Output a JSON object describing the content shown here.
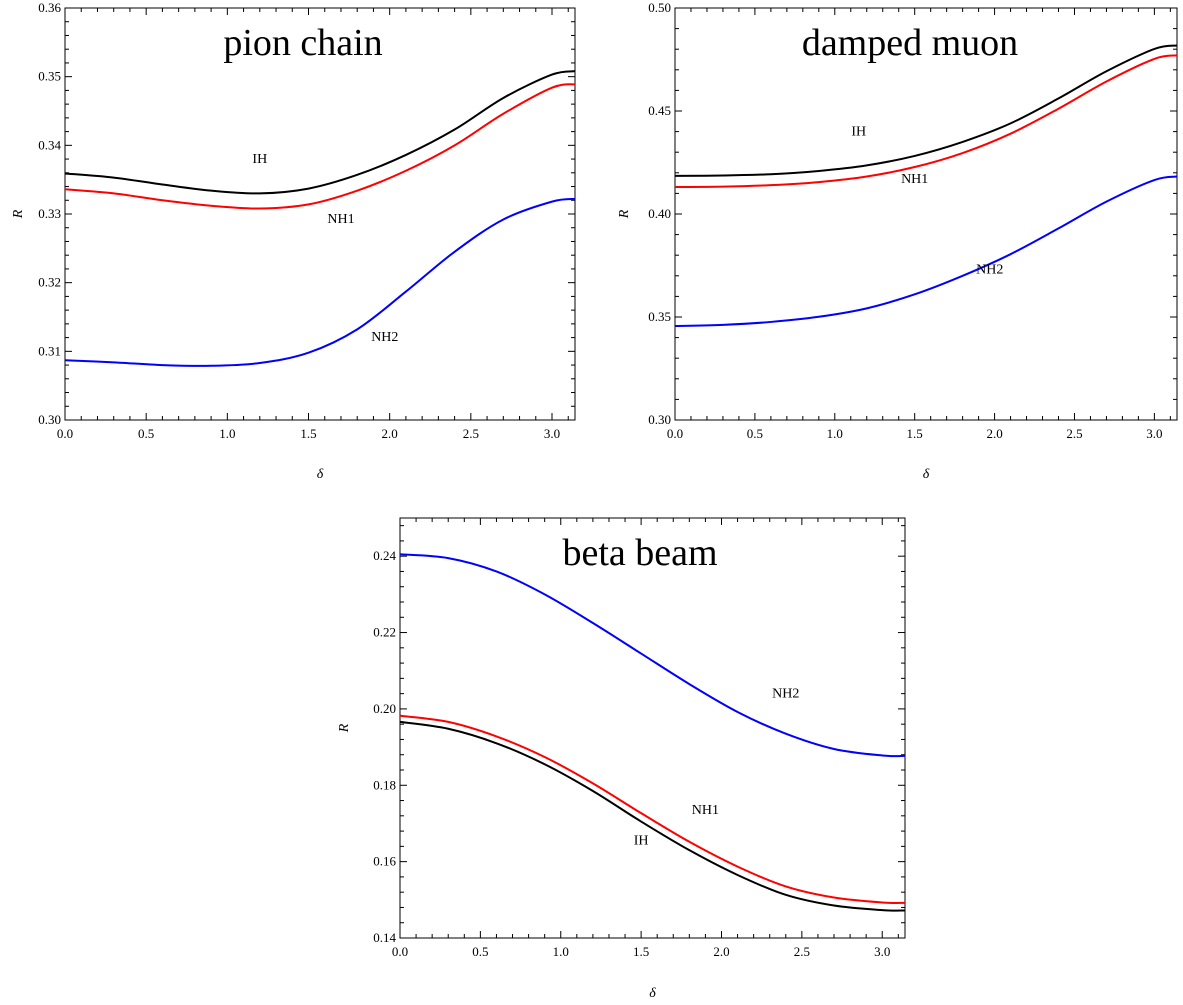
{
  "chart_data": [
    {
      "type": "line",
      "title": "pion chain",
      "xlabel": "δ",
      "ylabel": "R",
      "xlim": [
        0,
        3.1416
      ],
      "ylim": [
        0.3,
        0.36
      ],
      "xticks": [
        "0.0",
        "0.5",
        "1.0",
        "1.5",
        "2.0",
        "2.5",
        "3.0"
      ],
      "yticks": [
        "0.30",
        "0.31",
        "0.32",
        "0.33",
        "0.34",
        "0.35",
        "0.36"
      ],
      "ytick_values": [
        0.3,
        0.31,
        0.32,
        0.33,
        0.34,
        0.35,
        0.36
      ],
      "xtick_values": [
        0,
        0.5,
        1,
        1.5,
        2,
        2.5,
        3
      ],
      "grid": false,
      "series": [
        {
          "name": "IH",
          "color": "#000000",
          "x": [
            0,
            0.3,
            0.6,
            0.9,
            1.2,
            1.5,
            1.8,
            2.1,
            2.4,
            2.7,
            3.0,
            3.1416
          ],
          "y": [
            0.3359,
            0.3353,
            0.3343,
            0.3334,
            0.333,
            0.3337,
            0.3357,
            0.3386,
            0.3423,
            0.3469,
            0.3503,
            0.3508
          ]
        },
        {
          "name": "NH1",
          "color": "#ff0000",
          "x": [
            0,
            0.3,
            0.6,
            0.9,
            1.2,
            1.5,
            1.8,
            2.1,
            2.4,
            2.7,
            3.0,
            3.1416
          ],
          "y": [
            0.3336,
            0.333,
            0.332,
            0.3312,
            0.3308,
            0.3314,
            0.3334,
            0.3363,
            0.34,
            0.3446,
            0.3484,
            0.3489
          ]
        },
        {
          "name": "NH2",
          "color": "#0000ff",
          "x": [
            0,
            0.3,
            0.6,
            0.9,
            1.2,
            1.5,
            1.8,
            2.1,
            2.4,
            2.7,
            3.0,
            3.1416
          ],
          "y": [
            0.3087,
            0.3084,
            0.308,
            0.3079,
            0.3083,
            0.3098,
            0.3132,
            0.3187,
            0.3245,
            0.3292,
            0.3318,
            0.3322
          ]
        }
      ],
      "annotations": [
        {
          "text": "IH",
          "x": 1.2,
          "y": 0.3374
        },
        {
          "text": "NH1",
          "x": 1.7,
          "y": 0.3287
        },
        {
          "text": "NH2",
          "x": 1.97,
          "y": 0.3115
        }
      ]
    },
    {
      "type": "line",
      "title": "damped muon",
      "xlabel": "δ",
      "ylabel": "R",
      "xlim": [
        0,
        3.1416
      ],
      "ylim": [
        0.3,
        0.5
      ],
      "xticks": [
        "0.0",
        "0.5",
        "1.0",
        "1.5",
        "2.0",
        "2.5",
        "3.0"
      ],
      "yticks": [
        "0.30",
        "0.35",
        "0.40",
        "0.45",
        "0.50"
      ],
      "ytick_values": [
        0.3,
        0.35,
        0.4,
        0.45,
        0.5
      ],
      "xtick_values": [
        0,
        0.5,
        1,
        1.5,
        2,
        2.5,
        3
      ],
      "grid": false,
      "series": [
        {
          "name": "IH",
          "color": "#000000",
          "x": [
            0,
            0.3,
            0.6,
            0.9,
            1.2,
            1.5,
            1.8,
            2.1,
            2.4,
            2.7,
            3.0,
            3.1416
          ],
          "y": [
            0.4185,
            0.4187,
            0.4193,
            0.4209,
            0.4236,
            0.4282,
            0.435,
            0.444,
            0.4561,
            0.4693,
            0.4801,
            0.4818
          ]
        },
        {
          "name": "NH1",
          "color": "#ff0000",
          "x": [
            0,
            0.3,
            0.6,
            0.9,
            1.2,
            1.5,
            1.8,
            2.1,
            2.4,
            2.7,
            3.0,
            3.1416
          ],
          "y": [
            0.4131,
            0.4133,
            0.414,
            0.4155,
            0.4182,
            0.4228,
            0.4296,
            0.439,
            0.4511,
            0.4643,
            0.4753,
            0.477
          ]
        },
        {
          "name": "NH2",
          "color": "#0000ff",
          "x": [
            0,
            0.3,
            0.6,
            0.9,
            1.2,
            1.5,
            1.8,
            2.1,
            2.4,
            2.7,
            3.0,
            3.1416
          ],
          "y": [
            0.3456,
            0.3462,
            0.3476,
            0.3501,
            0.3542,
            0.361,
            0.37,
            0.3805,
            0.393,
            0.406,
            0.4165,
            0.4182
          ]
        }
      ],
      "annotations": [
        {
          "text": "IH",
          "x": 1.15,
          "y": 0.438
        },
        {
          "text": "NH1",
          "x": 1.5,
          "y": 0.415
        },
        {
          "text": "NH2",
          "x": 1.97,
          "y": 0.371
        }
      ]
    },
    {
      "type": "line",
      "title": "beta beam",
      "xlabel": "δ",
      "ylabel": "R",
      "xlim": [
        0,
        3.1416
      ],
      "ylim": [
        0.14,
        0.25
      ],
      "xticks": [
        "0.0",
        "0.5",
        "1.0",
        "1.5",
        "2.0",
        "2.5",
        "3.0"
      ],
      "yticks": [
        "0.14",
        "0.16",
        "0.18",
        "0.20",
        "0.22",
        "0.24"
      ],
      "ytick_values": [
        0.14,
        0.16,
        0.18,
        0.2,
        0.22,
        0.24
      ],
      "xtick_values": [
        0,
        0.5,
        1,
        1.5,
        2,
        2.5,
        3
      ],
      "grid": false,
      "series": [
        {
          "name": "IH",
          "color": "#000000",
          "x": [
            0,
            0.3,
            0.6,
            0.9,
            1.2,
            1.5,
            1.8,
            2.1,
            2.4,
            2.7,
            3.0,
            3.1416
          ],
          "y": [
            0.1966,
            0.1948,
            0.191,
            0.1855,
            0.1785,
            0.1705,
            0.163,
            0.1565,
            0.1513,
            0.1485,
            0.1473,
            0.1472
          ]
        },
        {
          "name": "NH1",
          "color": "#ff0000",
          "x": [
            0,
            0.3,
            0.6,
            0.9,
            1.2,
            1.5,
            1.8,
            2.1,
            2.4,
            2.7,
            3.0,
            3.1416
          ],
          "y": [
            0.1982,
            0.1966,
            0.1928,
            0.1874,
            0.1805,
            0.1727,
            0.1652,
            0.1587,
            0.1535,
            0.1506,
            0.1493,
            0.1492
          ]
        },
        {
          "name": "NH2",
          "color": "#0000ff",
          "x": [
            0,
            0.3,
            0.6,
            0.9,
            1.2,
            1.5,
            1.8,
            2.1,
            2.4,
            2.7,
            3.0,
            3.1416
          ],
          "y": [
            0.2405,
            0.2395,
            0.236,
            0.23,
            0.2225,
            0.2145,
            0.2065,
            0.1992,
            0.1935,
            0.1895,
            0.1878,
            0.1877
          ]
        }
      ],
      "annotations": [
        {
          "text": "IH",
          "x": 1.5,
          "y": 0.1645
        },
        {
          "text": "NH1",
          "x": 1.9,
          "y": 0.1725
        },
        {
          "text": "NH2",
          "x": 2.4,
          "y": 0.203
        }
      ]
    }
  ]
}
